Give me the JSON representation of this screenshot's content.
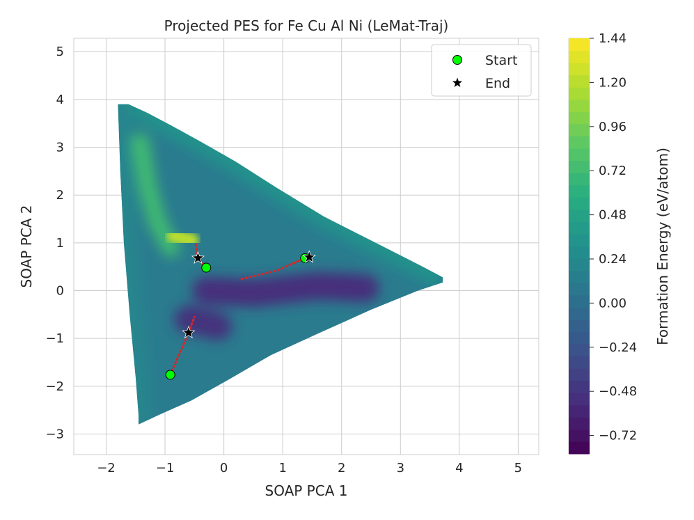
{
  "chart_data": {
    "type": "contour-scatter",
    "title": "Projected PES for Fe Cu Al Ni (LeMat-Traj)",
    "xlabel": "SOAP PCA 1",
    "ylabel": "SOAP PCA 2",
    "xlim": [
      -2.55,
      5.35
    ],
    "ylim": [
      -3.43,
      5.28
    ],
    "x_ticks": [
      -2,
      -1,
      0,
      1,
      2,
      3,
      4,
      5
    ],
    "x_tick_labels": [
      "−2",
      "−1",
      "0",
      "1",
      "2",
      "3",
      "4",
      "5"
    ],
    "y_ticks": [
      -3,
      -2,
      -1,
      0,
      1,
      2,
      3,
      4,
      5
    ],
    "y_tick_labels": [
      "−3",
      "−2",
      "−1",
      "0",
      "1",
      "2",
      "3",
      "4",
      "5"
    ],
    "grid": true,
    "colorbar": {
      "label": "Formation Energy (eV/atom)",
      "range": [
        -0.82,
        1.44
      ],
      "ticks": [
        1.44,
        1.2,
        0.96,
        0.72,
        0.48,
        0.24,
        0.0,
        -0.24,
        -0.48,
        -0.72
      ],
      "tick_labels": [
        "1.44",
        "1.20",
        "0.96",
        "0.72",
        "0.48",
        "0.24",
        "0.00",
        "−0.24",
        "−0.48",
        "−0.72"
      ],
      "colormap": "viridis"
    },
    "surface_region": [
      [
        -1.8,
        3.9
      ],
      [
        -1.62,
        3.9
      ],
      [
        -1.3,
        3.72
      ],
      [
        -0.9,
        3.46
      ],
      [
        -0.4,
        3.12
      ],
      [
        0.2,
        2.7
      ],
      [
        0.9,
        2.15
      ],
      [
        1.7,
        1.55
      ],
      [
        2.5,
        1.05
      ],
      [
        3.3,
        0.55
      ],
      [
        3.72,
        0.28
      ],
      [
        3.72,
        0.17
      ],
      [
        3.3,
        0.0
      ],
      [
        2.5,
        -0.4
      ],
      [
        1.6,
        -0.9
      ],
      [
        0.8,
        -1.35
      ],
      [
        0.1,
        -1.85
      ],
      [
        -0.55,
        -2.3
      ],
      [
        -1.1,
        -2.6
      ],
      [
        -1.45,
        -2.8
      ],
      [
        -1.45,
        -2.6
      ],
      [
        -1.5,
        -1.8
      ],
      [
        -1.6,
        -0.5
      ],
      [
        -1.7,
        1.0
      ],
      [
        -1.76,
        2.5
      ],
      [
        -1.8,
        3.9
      ]
    ],
    "surface_features": [
      {
        "name": "bright-ridge",
        "value": 0.72,
        "points": [
          [
            -1.42,
            3.1
          ],
          [
            -1.3,
            2.2
          ],
          [
            -1.12,
            1.4
          ],
          [
            -0.9,
            0.9
          ]
        ]
      },
      {
        "name": "hot-spot",
        "value": 1.2,
        "points": [
          [
            -0.85,
            1.15
          ],
          [
            -0.55,
            1.05
          ]
        ]
      },
      {
        "name": "central-well",
        "value": -0.52,
        "points": [
          [
            -0.3,
            0.0
          ],
          [
            0.5,
            -0.05
          ],
          [
            1.6,
            0.1
          ],
          [
            2.4,
            0.05
          ]
        ]
      },
      {
        "name": "lower-well",
        "value": -0.5,
        "points": [
          [
            -0.6,
            -0.6
          ],
          [
            -0.1,
            -0.75
          ]
        ]
      }
    ],
    "series": [
      {
        "name": "Start",
        "marker": "circle",
        "color": "#00ff00",
        "points": [
          [
            -0.91,
            -1.76
          ],
          [
            -0.3,
            0.48
          ],
          [
            1.38,
            0.68
          ]
        ]
      },
      {
        "name": "End",
        "marker": "star",
        "color": "#000000",
        "points": [
          [
            -0.6,
            -0.88
          ],
          [
            -0.44,
            0.68
          ],
          [
            1.45,
            0.7
          ]
        ]
      }
    ],
    "trajectories": [
      {
        "color": "#d62728",
        "style": "dotted",
        "points": [
          [
            -0.91,
            -1.76
          ],
          [
            -0.6,
            -0.88
          ],
          [
            -0.5,
            -0.55
          ]
        ]
      },
      {
        "color": "#d62728",
        "style": "dotted",
        "points": [
          [
            -0.3,
            0.48
          ],
          [
            -0.44,
            0.68
          ],
          [
            -0.48,
            1.0
          ]
        ]
      },
      {
        "color": "#d62728",
        "style": "dotted",
        "points": [
          [
            0.3,
            0.24
          ],
          [
            0.9,
            0.42
          ],
          [
            1.38,
            0.68
          ]
        ]
      }
    ],
    "legend": {
      "position": "top-right",
      "entries": [
        "Start",
        "End"
      ]
    }
  }
}
